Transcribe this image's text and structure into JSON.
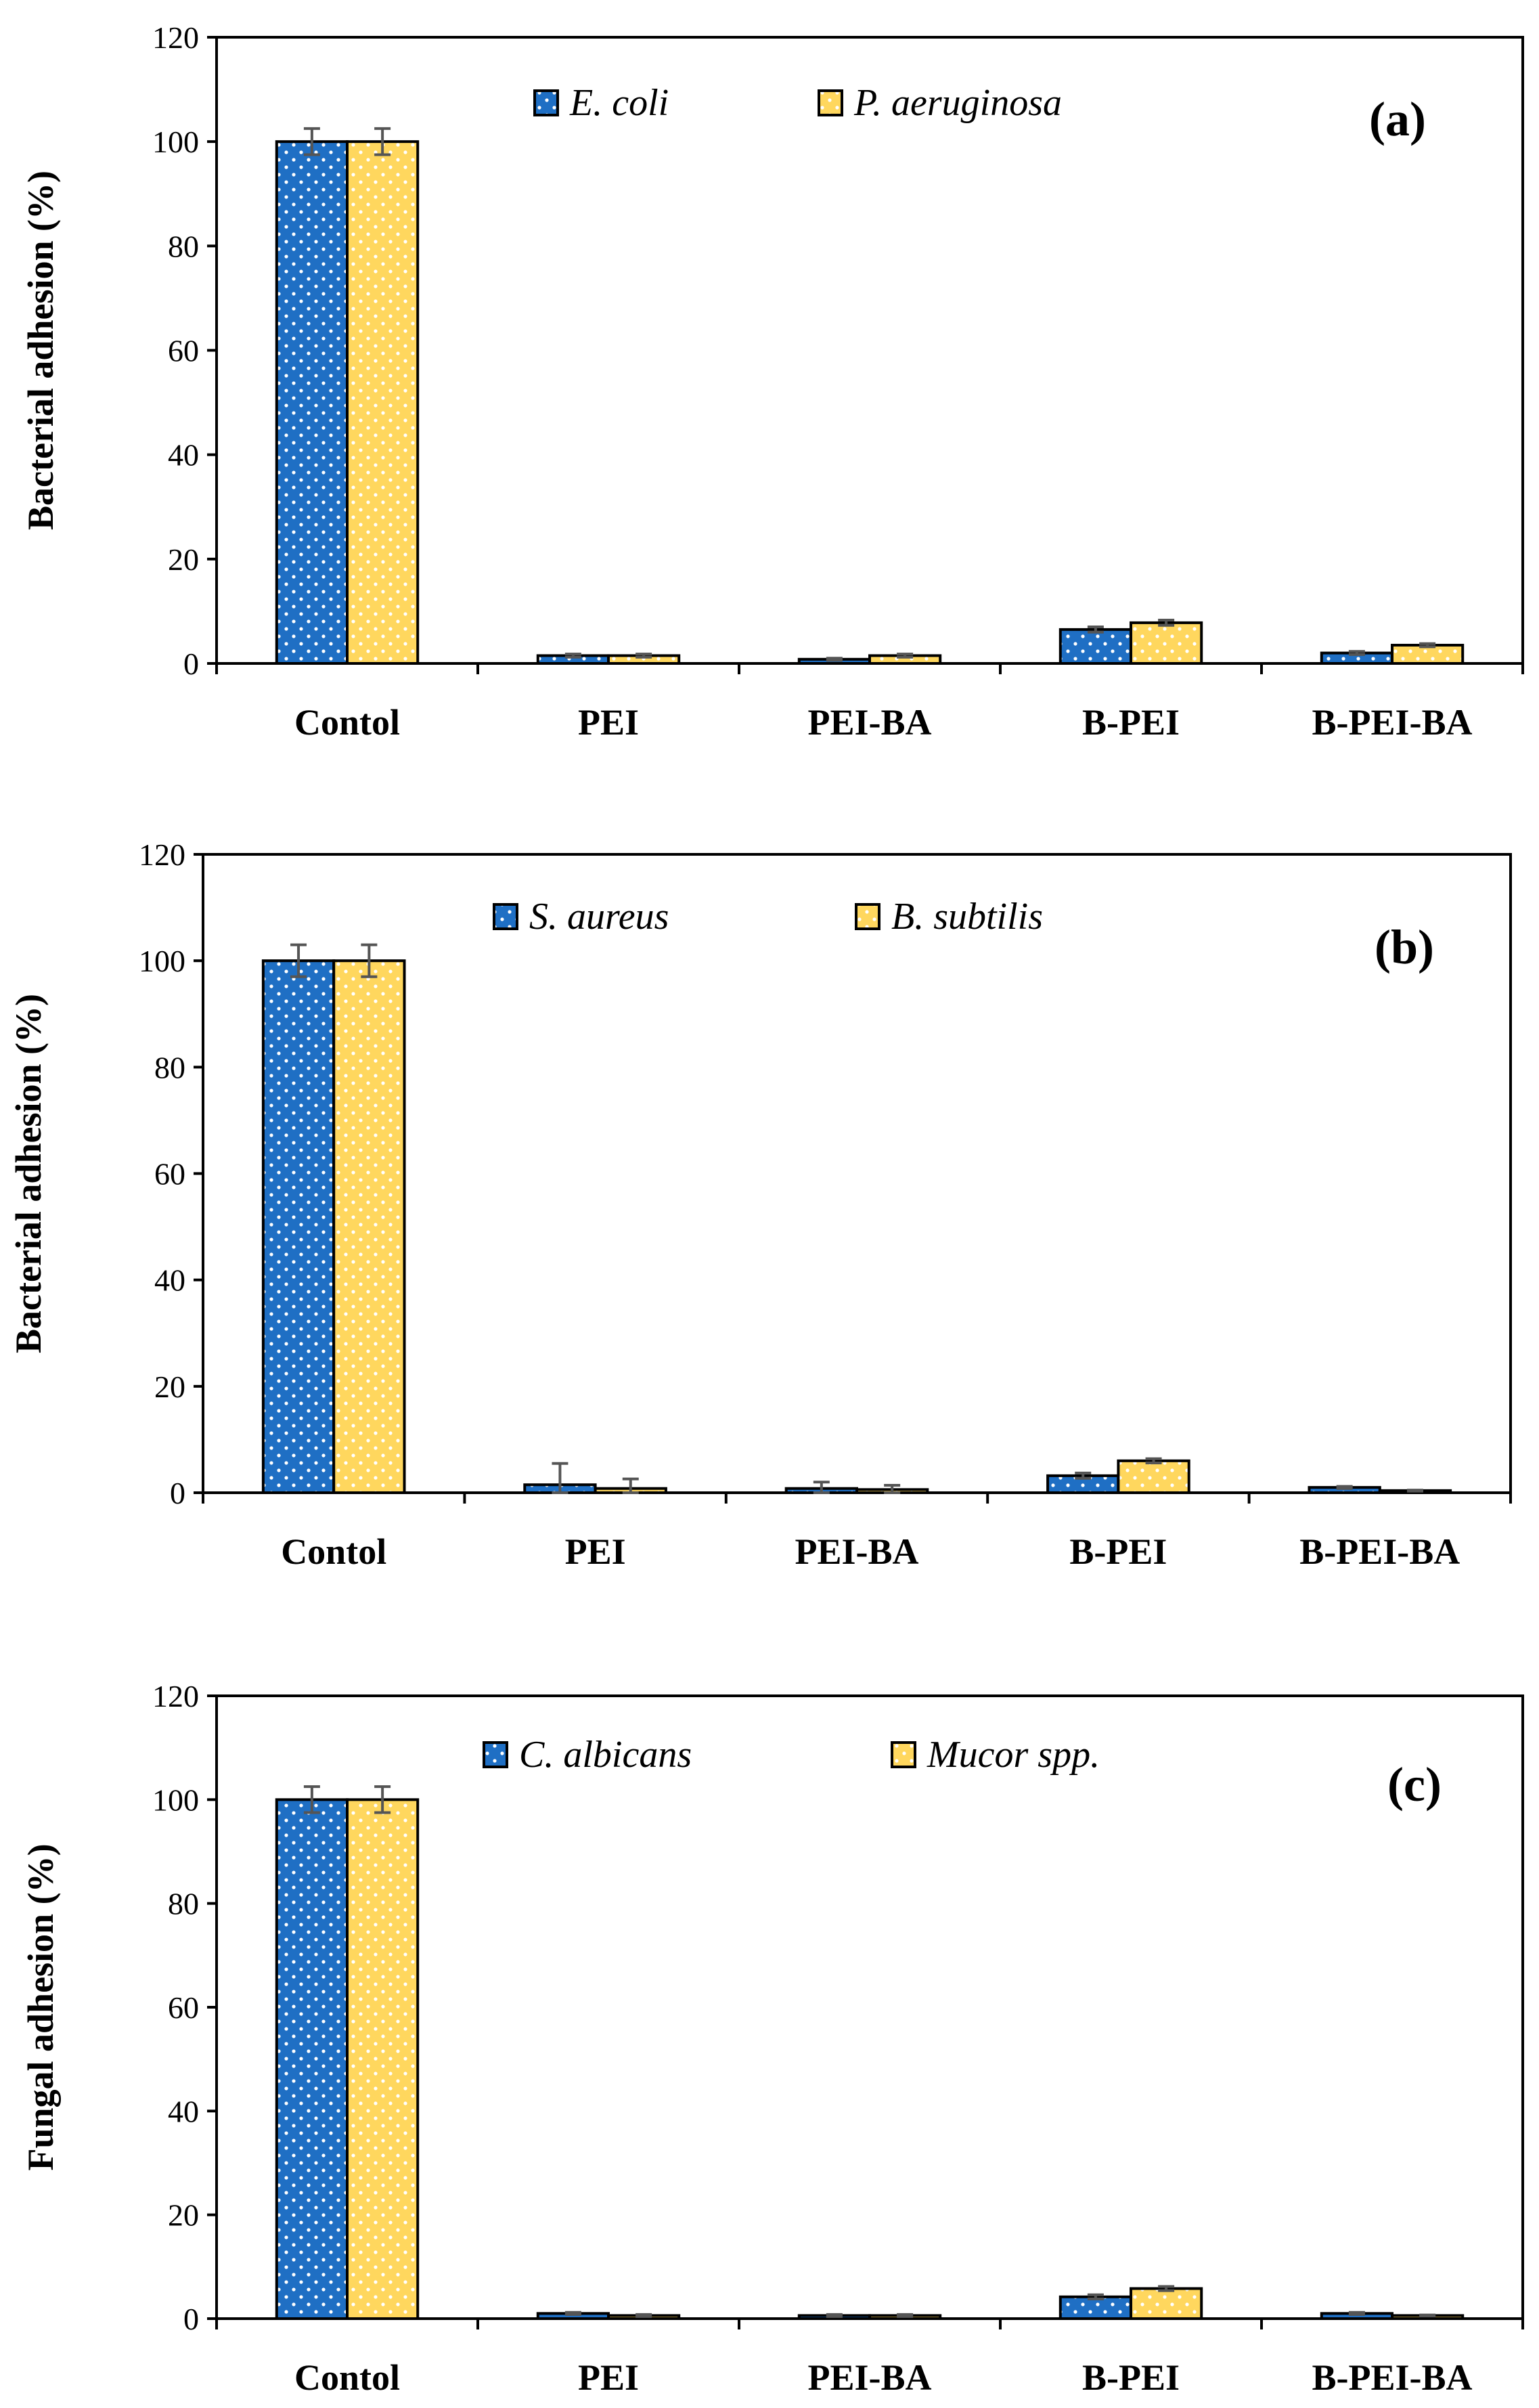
{
  "figure": {
    "colors": {
      "series1": "#1f6fc4",
      "series2": "#ffd75e",
      "stroke": "#000000",
      "errbar": "#555555",
      "dots": "#ffffff"
    },
    "icons": {
      "bar_texture": "white-dot-pattern"
    }
  },
  "chart_data": [
    {
      "type": "bar",
      "panel_label": "(a)",
      "ylabel": "Bacterial adhesion (%)",
      "xlabel": "",
      "ylim": [
        0,
        120
      ],
      "yticks": [
        "0",
        "20",
        "40",
        "60",
        "80",
        "100",
        "120"
      ],
      "categories": [
        "Contol",
        "PEI",
        "PEI-BA",
        "B-PEI",
        "B-PEI-BA"
      ],
      "legend_position": "top",
      "series": [
        {
          "name": "E. coli",
          "values": [
            100,
            1.5,
            0.8,
            6.5,
            2.0
          ],
          "errors": [
            2.5,
            0.3,
            0.2,
            0.5,
            0.3
          ]
        },
        {
          "name": "P. aeruginosa",
          "values": [
            100,
            1.5,
            1.5,
            7.8,
            3.5
          ],
          "errors": [
            2.5,
            0.3,
            0.3,
            0.5,
            0.3
          ]
        }
      ]
    },
    {
      "type": "bar",
      "panel_label": "(b)",
      "ylabel": "Bacterial adhesion (%)",
      "xlabel": "",
      "ylim": [
        0,
        120
      ],
      "yticks": [
        "0",
        "20",
        "40",
        "60",
        "80",
        "100",
        "120"
      ],
      "categories": [
        "Contol",
        "PEI",
        "PEI-BA",
        "B-PEI",
        "B-PEI-BA"
      ],
      "legend_position": "top",
      "series": [
        {
          "name": "S. aureus",
          "values": [
            100,
            1.5,
            0.8,
            3.2,
            1.0
          ],
          "errors": [
            3.0,
            4.0,
            1.2,
            0.5,
            0.2
          ]
        },
        {
          "name": "B. subtilis",
          "values": [
            100,
            0.8,
            0.6,
            6.0,
            0.4
          ],
          "errors": [
            3.0,
            1.8,
            0.8,
            0.4,
            0.1
          ]
        }
      ]
    },
    {
      "type": "bar",
      "panel_label": "(c)",
      "ylabel": "Fungal adhesion (%)",
      "xlabel": "",
      "ylim": [
        0,
        120
      ],
      "yticks": [
        "0",
        "20",
        "40",
        "60",
        "80",
        "100",
        "120"
      ],
      "categories": [
        "Contol",
        "PEI",
        "PEI-BA",
        "B-PEI",
        "B-PEI-BA"
      ],
      "legend_position": "top",
      "series": [
        {
          "name": "C. albicans",
          "values": [
            100,
            1.0,
            0.6,
            4.2,
            1.0
          ],
          "errors": [
            2.5,
            0.2,
            0.2,
            0.4,
            0.2
          ]
        },
        {
          "name": "Mucor spp.",
          "values": [
            100,
            0.6,
            0.6,
            5.8,
            0.6
          ],
          "errors": [
            2.5,
            0.2,
            0.2,
            0.4,
            0.1
          ]
        }
      ]
    }
  ]
}
